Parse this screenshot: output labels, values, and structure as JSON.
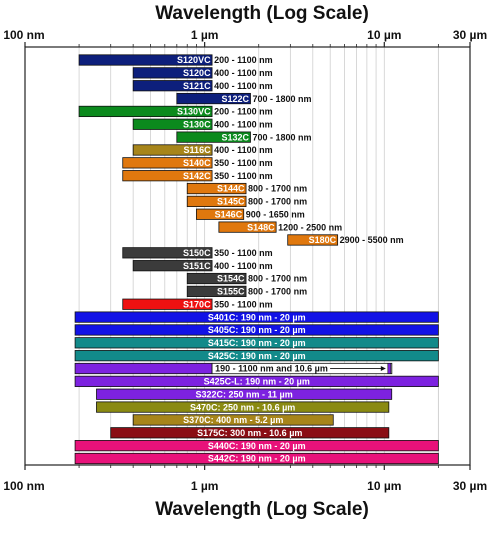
{
  "chart_data": {
    "type": "bar",
    "orientation": "horizontal-range",
    "title_top": "Wavelength (Log Scale)",
    "title_bottom": "Wavelength (Log Scale)",
    "x_scale": "log",
    "x_unit": "nm",
    "xlim": [
      100,
      30000
    ],
    "x_ticks": [
      {
        "value": 100,
        "label": "100 nm"
      },
      {
        "value": 1000,
        "label": "1 µm"
      },
      {
        "value": 10000,
        "label": "10 µm"
      },
      {
        "value": 30000,
        "label": "30 µm"
      }
    ],
    "grid": true,
    "bars": [
      {
        "name": "S120VC",
        "start": 200,
        "end": 1100,
        "range_label": "200 - 1100 nm",
        "color": "#0d1f7c",
        "label_inside": false
      },
      {
        "name": "S120C",
        "start": 400,
        "end": 1100,
        "range_label": "400 - 1100 nm",
        "color": "#0d1f7c",
        "label_inside": false
      },
      {
        "name": "S121C",
        "start": 400,
        "end": 1100,
        "range_label": "400 - 1100 nm",
        "color": "#0d1f7c",
        "label_inside": false
      },
      {
        "name": "S122C",
        "start": 700,
        "end": 1800,
        "range_label": "700 - 1800 nm",
        "color": "#0d1f7c",
        "label_inside": false
      },
      {
        "name": "S130VC",
        "start": 200,
        "end": 1100,
        "range_label": "200 - 1100 nm",
        "color": "#0b8a1d",
        "label_inside": false
      },
      {
        "name": "S130C",
        "start": 400,
        "end": 1100,
        "range_label": "400 - 1100 nm",
        "color": "#0b8a1d",
        "label_inside": false
      },
      {
        "name": "S132C",
        "start": 700,
        "end": 1800,
        "range_label": "700 - 1800 nm",
        "color": "#0b8a1d",
        "label_inside": false
      },
      {
        "name": "S116C",
        "start": 400,
        "end": 1100,
        "range_label": "400 - 1100 nm",
        "color": "#a7851a",
        "label_inside": false
      },
      {
        "name": "S140C",
        "start": 350,
        "end": 1100,
        "range_label": "350 - 1100 nm",
        "color": "#e0780e",
        "label_inside": false
      },
      {
        "name": "S142C",
        "start": 350,
        "end": 1100,
        "range_label": "350 - 1100 nm",
        "color": "#e0780e",
        "label_inside": false
      },
      {
        "name": "S144C",
        "start": 800,
        "end": 1700,
        "range_label": "800 - 1700 nm",
        "color": "#e0780e",
        "label_inside": false
      },
      {
        "name": "S145C",
        "start": 800,
        "end": 1700,
        "range_label": "800 - 1700 nm",
        "color": "#e0780e",
        "label_inside": false
      },
      {
        "name": "S146C",
        "start": 900,
        "end": 1650,
        "range_label": "900 - 1650 nm",
        "color": "#e0780e",
        "label_inside": false
      },
      {
        "name": "S148C",
        "start": 1200,
        "end": 2500,
        "range_label": "1200 - 2500 nm",
        "color": "#e0780e",
        "label_inside": false
      },
      {
        "name": "S180C",
        "start": 2900,
        "end": 5500,
        "range_label": "2900 - 5500 nm",
        "color": "#e0780e",
        "label_inside": false
      },
      {
        "name": "S150C",
        "start": 350,
        "end": 1100,
        "range_label": "350 - 1100 nm",
        "color": "#3b3b3b",
        "label_inside": false
      },
      {
        "name": "S151C",
        "start": 400,
        "end": 1100,
        "range_label": "400 - 1100 nm",
        "color": "#3b3b3b",
        "label_inside": false
      },
      {
        "name": "S154C",
        "start": 800,
        "end": 1700,
        "range_label": "800 - 1700 nm",
        "color": "#3b3b3b",
        "label_inside": false
      },
      {
        "name": "S155C",
        "start": 800,
        "end": 1700,
        "range_label": "800 - 1700 nm",
        "color": "#3b3b3b",
        "label_inside": false
      },
      {
        "name": "S170C",
        "start": 350,
        "end": 1100,
        "range_label": "350 - 1100 nm",
        "color": "#ee1111",
        "label_inside": false
      },
      {
        "name": "S401C: 190 nm - 20 µm",
        "start": 190,
        "end": 20000,
        "range_label": "",
        "color": "#1212e6",
        "label_inside": true
      },
      {
        "name": "S405C: 190 nm - 20 µm",
        "start": 190,
        "end": 20000,
        "range_label": "",
        "color": "#1212e6",
        "label_inside": true
      },
      {
        "name": "S415C: 190 nm - 20 µm",
        "start": 190,
        "end": 20000,
        "range_label": "",
        "color": "#128a8a",
        "label_inside": true
      },
      {
        "name": "S425C: 190 nm - 20 µm",
        "start": 190,
        "end": 20000,
        "range_label": "",
        "color": "#128a8a",
        "label_inside": true
      },
      {
        "name": "190 - 1100 nm and 10.6 µm",
        "start": 190,
        "end": 1100,
        "point": 10600,
        "range_label": "",
        "color": "#7d22e0",
        "label_inside": true,
        "special": "arrow"
      },
      {
        "name": "S425C-L: 190 nm - 20 µm",
        "start": 190,
        "end": 20000,
        "range_label": "",
        "color": "#7d22e0",
        "label_inside": true
      },
      {
        "name": "S322C: 250 nm - 11 µm",
        "start": 250,
        "end": 11000,
        "range_label": "",
        "color": "#7d22e0",
        "label_inside": true
      },
      {
        "name": "S470C: 250 nm - 10.6 µm",
        "start": 250,
        "end": 10600,
        "range_label": "",
        "color": "#8a8a12",
        "label_inside": true
      },
      {
        "name": "S370C: 400 nm - 5.2 µm",
        "start": 400,
        "end": 5200,
        "range_label": "",
        "color": "#a7851a",
        "label_inside": true
      },
      {
        "name": "S175C: 300 nm - 10.6 µm",
        "start": 300,
        "end": 10600,
        "range_label": "",
        "color": "#8a0d14",
        "label_inside": true
      },
      {
        "name": "S440C: 190 nm - 20 µm",
        "start": 190,
        "end": 20000,
        "range_label": "",
        "color": "#e8127a",
        "label_inside": true
      },
      {
        "name": "S442C: 190 nm - 20 µm",
        "start": 190,
        "end": 20000,
        "range_label": "",
        "color": "#e8127a",
        "label_inside": true
      }
    ]
  }
}
